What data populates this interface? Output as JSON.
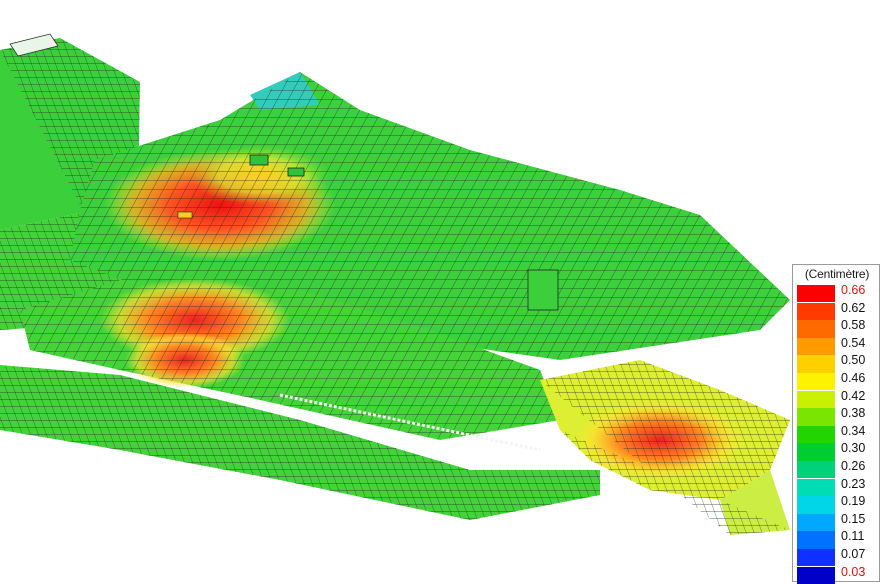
{
  "legend": {
    "unit": "(Centimètre)",
    "values": [
      "0.66",
      "0.62",
      "0.58",
      "0.54",
      "0.50",
      "0.46",
      "0.42",
      "0.38",
      "0.34",
      "0.30",
      "0.26",
      "0.23",
      "0.19",
      "0.15",
      "0.11",
      "0.07",
      "0.03"
    ],
    "colors": [
      "#ff0000",
      "#ff3a00",
      "#ff6a00",
      "#ff9a00",
      "#ffcf00",
      "#fff200",
      "#c8f000",
      "#7ae600",
      "#22d400",
      "#00cc33",
      "#00d27a",
      "#00dcb4",
      "#00d6e8",
      "#00a8ff",
      "#0070ff",
      "#1030ff",
      "#0000c8"
    ],
    "extreme_color": "#e01010"
  },
  "model": {
    "mesh_color": "#1c2a1c",
    "palette": {
      "green": "#33cc33",
      "light_green": "#66dd33",
      "yellow": "#ffee33",
      "orange": "#ff9922",
      "red": "#ee2222",
      "cyan": "#33ccbb"
    }
  }
}
